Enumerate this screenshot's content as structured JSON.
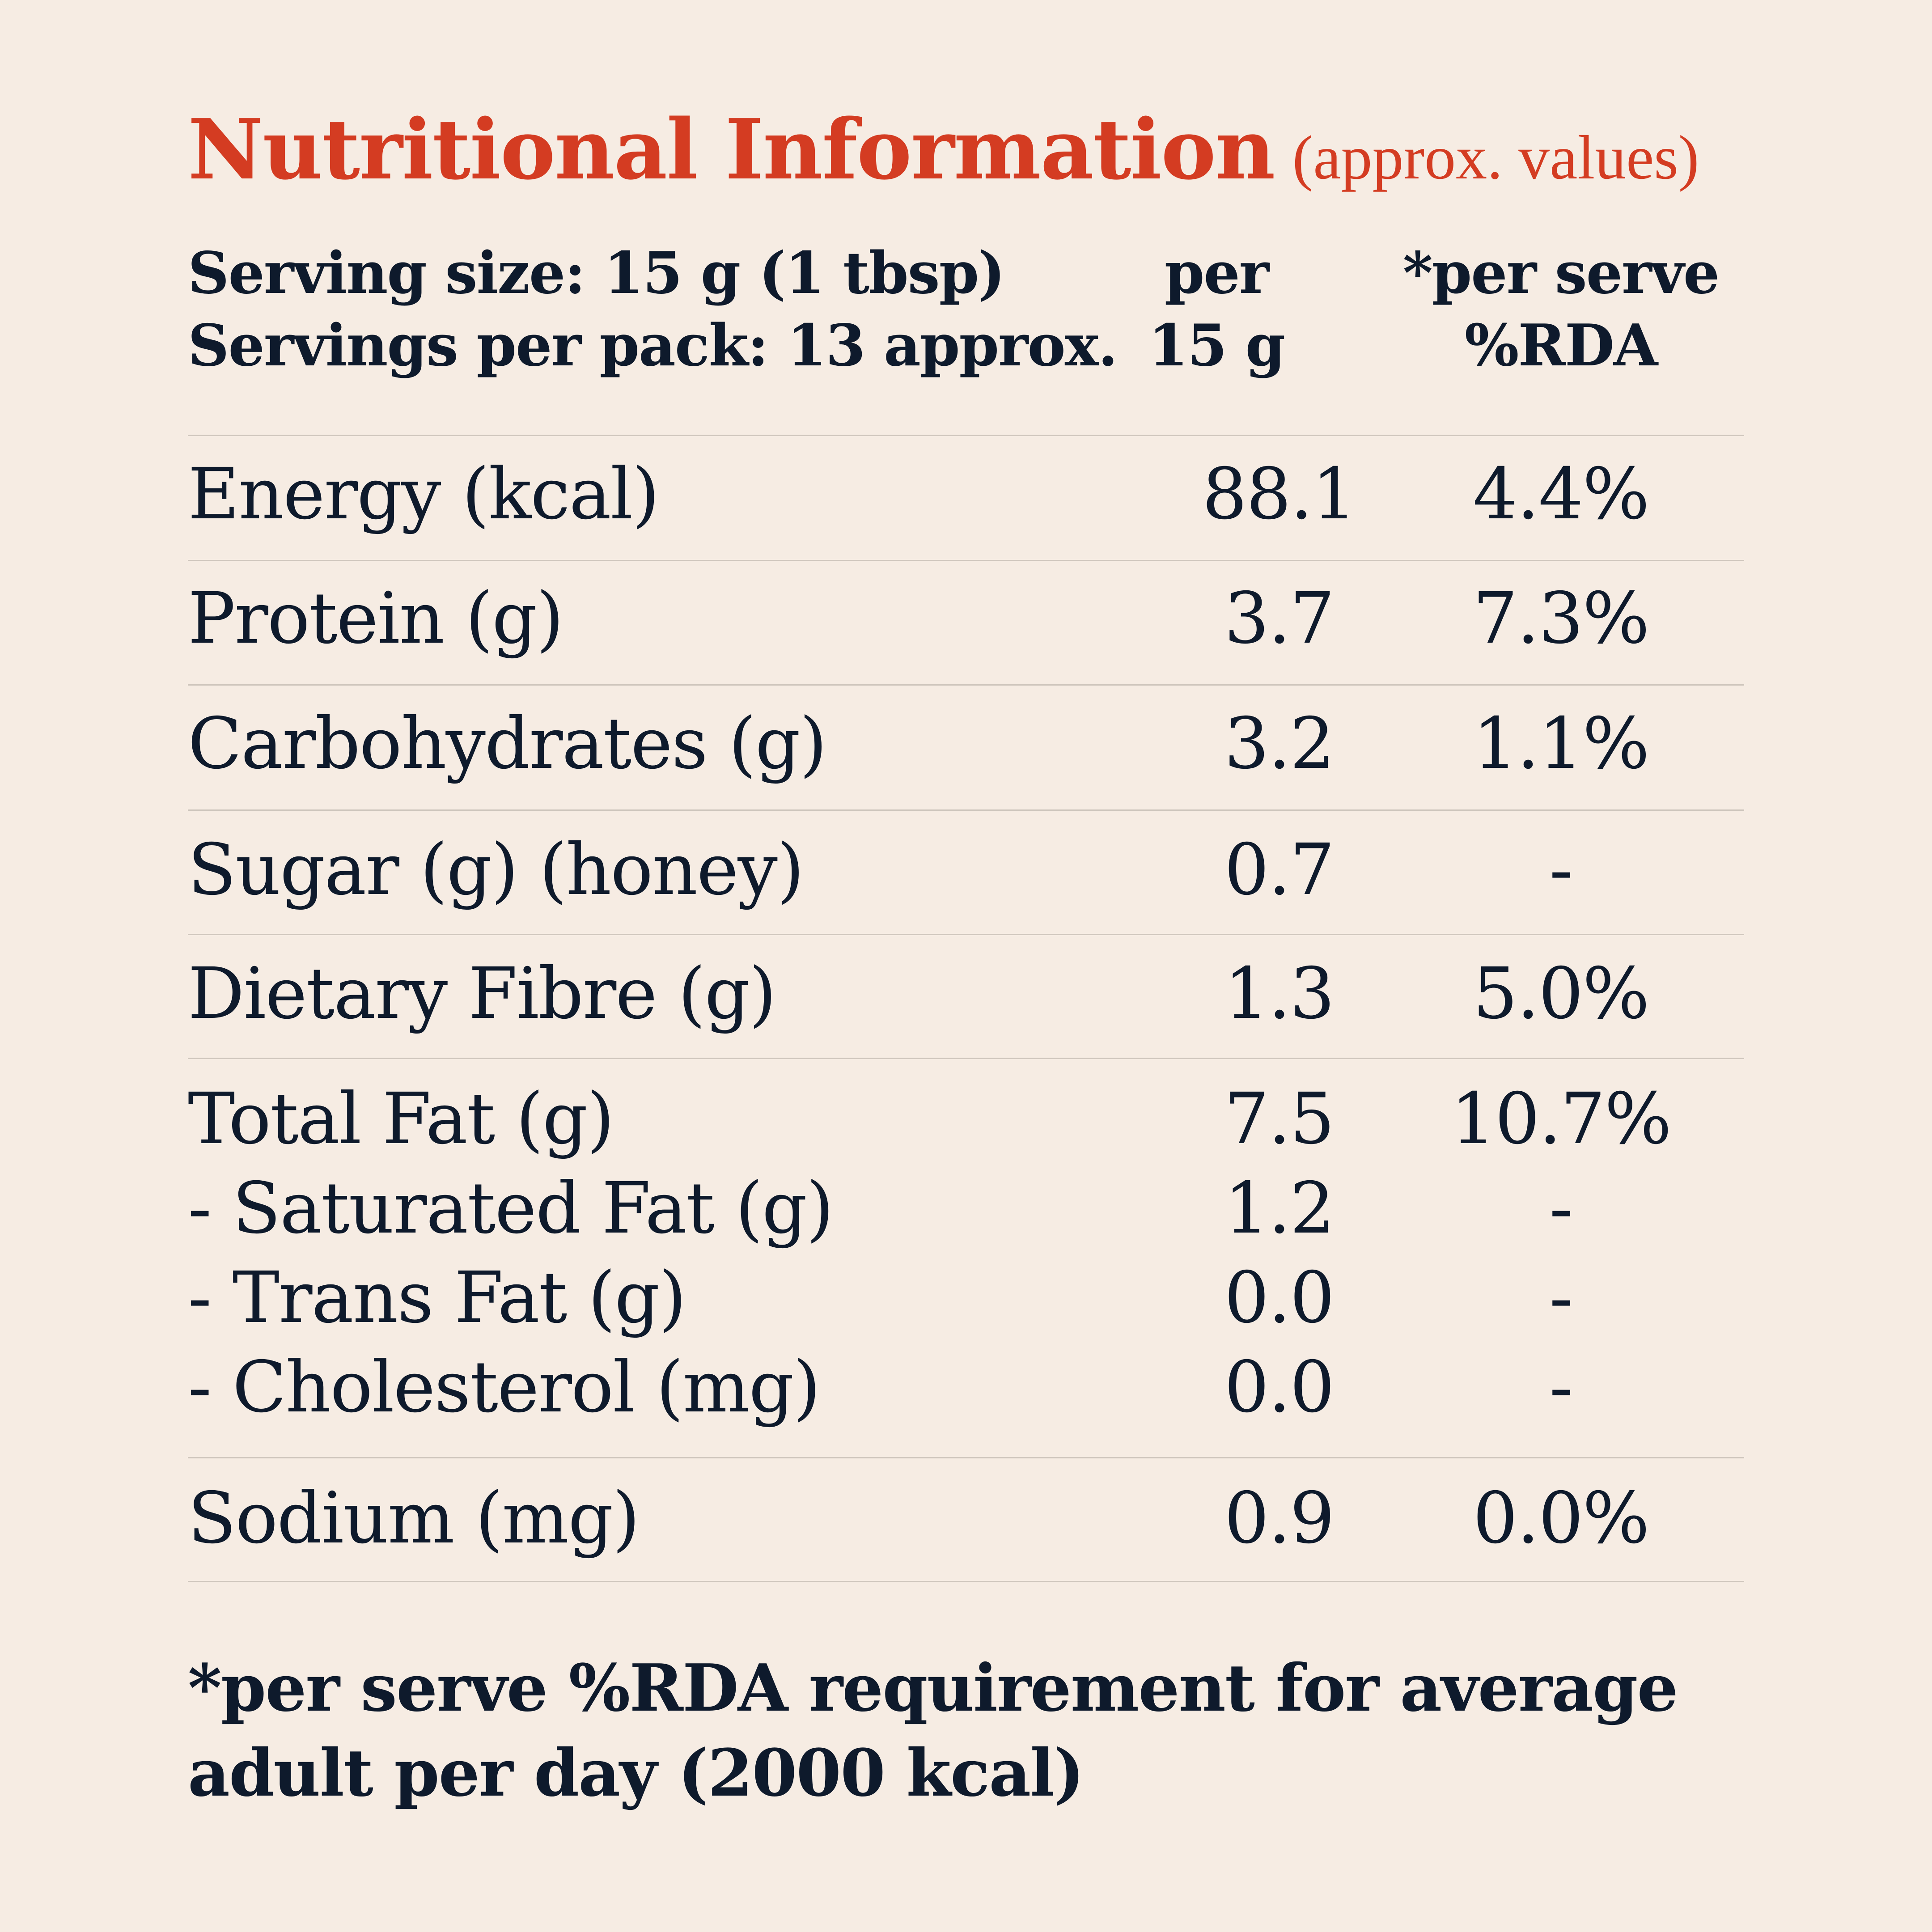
{
  "title": {
    "main": "Nutritional Information",
    "sub": "(approx. values)"
  },
  "header": {
    "serving_size": "Serving size: 15 g (1 tbsp)",
    "servings_per_pack": "Servings per pack: 13 approx.",
    "per_col_line1": "per",
    "per_col_line2": "15 g",
    "rda_col_line1": "*per serve",
    "rda_col_line2": "%RDA"
  },
  "rows": [
    {
      "name": "Energy (kcal)",
      "per": "88.1",
      "rda": "4.4%"
    },
    {
      "name": "Protein (g)",
      "per": "3.7",
      "rda": "7.3%"
    },
    {
      "name": "Carbohydrates (g)",
      "per": "3.2",
      "rda": "1.1%"
    },
    {
      "name": "Sugar (g) (honey)",
      "per": "0.7",
      "rda": "-"
    },
    {
      "name": "Dietary Fibre (g)",
      "per": "1.3",
      "rda": "5.0%"
    },
    {
      "name": "Total Fat (g)",
      "per": "7.5",
      "rda": "10.7%"
    },
    {
      "name": "- Saturated Fat (g)",
      "per": "1.2",
      "rda": "-"
    },
    {
      "name": "- Trans Fat (g)",
      "per": "0.0",
      "rda": "-"
    },
    {
      "name": "- Cholesterol (mg)",
      "per": "0.0",
      "rda": "-"
    },
    {
      "name": "Sodium (mg)",
      "per": "0.9",
      "rda": "0.0%"
    }
  ],
  "footnote": {
    "line1": "*per serve %RDA requirement for average",
    "line2": "adult per day (2000 kcal)"
  },
  "colors": {
    "background": "#f6ece3",
    "title": "#d43c22",
    "text": "#0e1a2c",
    "rule": "#cfc6bd"
  }
}
